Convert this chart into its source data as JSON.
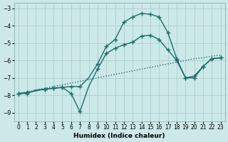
{
  "xlabel": "Humidex (Indice chaleur)",
  "background_color": "#cce8e8",
  "grid_color": "#aacfcf",
  "line_color": "#1a6e6a",
  "xlim": [
    -0.5,
    23.5
  ],
  "ylim": [
    -9.5,
    -2.7
  ],
  "xticks": [
    0,
    1,
    2,
    3,
    4,
    5,
    6,
    7,
    8,
    9,
    10,
    11,
    12,
    13,
    14,
    15,
    16,
    17,
    18,
    19,
    20,
    21,
    22,
    23
  ],
  "yticks": [
    -9,
    -8,
    -7,
    -6,
    -5,
    -4,
    -3
  ],
  "line_dotted_x": [
    0,
    1,
    2,
    3,
    4,
    5,
    6,
    7,
    8,
    9,
    10,
    11,
    12,
    13,
    14,
    15,
    16,
    17,
    18,
    19,
    20,
    21,
    22,
    23
  ],
  "line_dotted_y": [
    -7.9,
    -7.8,
    -7.7,
    -7.6,
    -7.5,
    -7.4,
    -7.3,
    -7.2,
    -7.1,
    -7.0,
    -6.9,
    -6.8,
    -6.7,
    -6.6,
    -6.5,
    -6.4,
    -6.3,
    -6.2,
    -6.1,
    -6.0,
    -5.9,
    -5.85,
    -5.75,
    -5.7
  ],
  "line_curvy_x": [
    0,
    1,
    2,
    3,
    4,
    5,
    6,
    7,
    8,
    9,
    10,
    11,
    12,
    13,
    14,
    15,
    16,
    17,
    18,
    19,
    20,
    21,
    22,
    23
  ],
  "line_curvy_y": [
    -7.9,
    -7.9,
    -7.7,
    -7.65,
    -7.6,
    -7.55,
    -7.5,
    -7.5,
    -7.0,
    -6.2,
    -5.2,
    -4.8,
    -3.8,
    -3.5,
    -3.3,
    -3.35,
    -3.5,
    -4.4,
    -5.9,
    -7.0,
    -7.0,
    -6.35,
    -5.9,
    -5.85
  ],
  "line_curvy_markers_x": [
    0,
    1,
    3,
    4,
    5,
    6,
    7,
    9,
    10,
    11,
    12,
    13,
    14,
    15,
    16,
    17,
    18,
    19,
    20,
    21,
    22,
    23
  ],
  "line_curvy_markers_y": [
    -7.9,
    -7.9,
    -7.65,
    -7.6,
    -7.55,
    -7.5,
    -7.5,
    -6.2,
    -5.2,
    -4.8,
    -3.8,
    -3.5,
    -3.3,
    -3.35,
    -3.5,
    -4.4,
    -5.9,
    -7.0,
    -7.0,
    -6.35,
    -5.9,
    -5.85
  ],
  "line_dip_x": [
    0,
    1,
    2,
    3,
    4,
    5,
    6,
    7,
    8,
    9,
    10,
    11,
    12,
    13,
    14,
    15,
    16,
    17,
    18,
    19,
    20,
    21,
    22,
    23
  ],
  "line_dip_y": [
    -7.9,
    -7.85,
    -7.75,
    -7.65,
    -7.6,
    -7.55,
    -7.9,
    -8.95,
    -7.5,
    -6.5,
    -5.6,
    -5.3,
    -5.1,
    -4.95,
    -4.6,
    -4.55,
    -4.8,
    -5.4,
    -6.0,
    -7.0,
    -6.9,
    -6.35,
    -5.9,
    -5.85
  ],
  "line_dip_markers_x": [
    0,
    1,
    3,
    4,
    5,
    6,
    7,
    9,
    10,
    11,
    12,
    13,
    14,
    15,
    16,
    17,
    18,
    19,
    20,
    21,
    22,
    23
  ],
  "line_dip_markers_y": [
    -7.9,
    -7.85,
    -7.65,
    -7.6,
    -7.55,
    -7.9,
    -8.95,
    -6.5,
    -5.6,
    -5.3,
    -5.1,
    -4.95,
    -4.6,
    -4.55,
    -4.8,
    -5.4,
    -6.0,
    -7.0,
    -6.9,
    -6.35,
    -5.9,
    -5.85
  ]
}
